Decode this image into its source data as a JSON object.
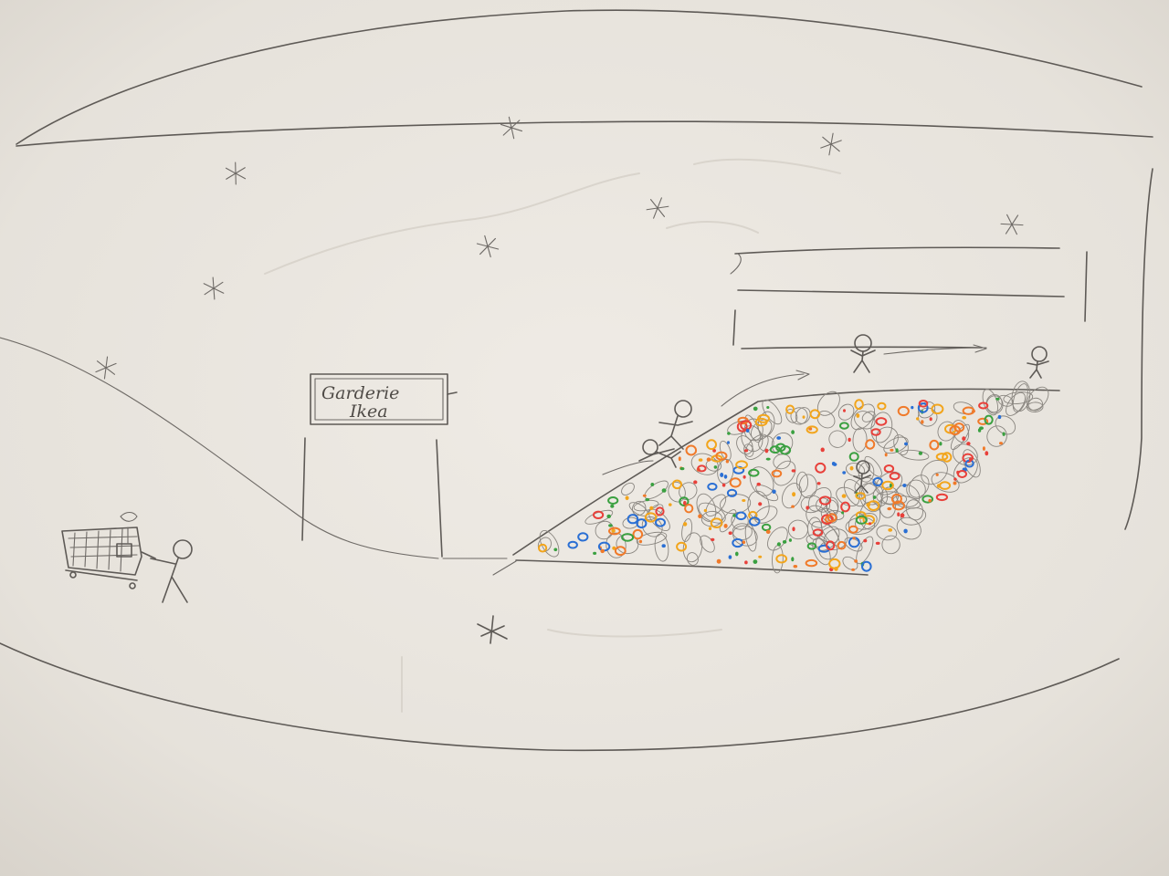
{
  "sign": {
    "line1": "Garderie",
    "line2": "Ikea"
  },
  "colors": {
    "paper": "#e9e5de",
    "pencil": "#5e5a56",
    "ball_colors": [
      "#e8403a",
      "#2a6fd4",
      "#f2a51c",
      "#3aa040",
      "#f07a2a"
    ]
  },
  "icons": {
    "star": "pencil-star-icon",
    "stick_figure": "stick-figure-icon",
    "cart": "shopping-cart-icon"
  }
}
